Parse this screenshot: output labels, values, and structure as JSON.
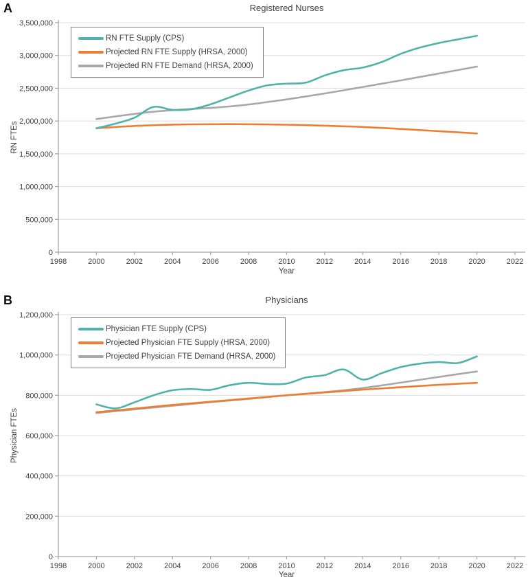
{
  "figure": {
    "background": "#ffffff",
    "text_color": "#404040",
    "axis_color": "#a6a6a6",
    "gridline_color": "#dcdcdc"
  },
  "chart_data": [
    {
      "type": "line",
      "panel_label": "A",
      "title": "Registered Nurses",
      "xlabel": "Year",
      "ylabel": "RN FTEs",
      "xlim": [
        1998,
        2022
      ],
      "ylim": [
        0,
        3500000
      ],
      "x_tick_step": 2,
      "y_tick_step": 500000,
      "grid": "horizontal",
      "legend_position": "top-left",
      "x": [
        2000,
        2001,
        2002,
        2003,
        2004,
        2005,
        2006,
        2007,
        2008,
        2009,
        2010,
        2011,
        2012,
        2013,
        2014,
        2015,
        2016,
        2017,
        2018,
        2019,
        2020
      ],
      "series": [
        {
          "name": "RN FTE Supply (CPS)",
          "color": "#4FB3AC",
          "values": [
            1890000,
            1960000,
            2050000,
            2215000,
            2170000,
            2180000,
            2255000,
            2360000,
            2465000,
            2545000,
            2570000,
            2585000,
            2695000,
            2775000,
            2815000,
            2900000,
            3025000,
            3120000,
            3190000,
            3245000,
            3300000
          ]
        },
        {
          "name": "Projected RN FTE Supply (HRSA, 2000)",
          "color": "#EC7D33",
          "values": [
            1890000,
            1908000,
            1925000,
            1936000,
            1945000,
            1949000,
            1951000,
            1952000,
            1951000,
            1948000,
            1944000,
            1937000,
            1929000,
            1920000,
            1909000,
            1895000,
            1879000,
            1862000,
            1845000,
            1828000,
            1810000
          ]
        },
        {
          "name": "Projected RN FTE Demand (HRSA, 2000)",
          "color": "#A8A8A8",
          "values": [
            2030000,
            2070000,
            2108000,
            2142000,
            2166000,
            2184000,
            2200000,
            2222000,
            2252000,
            2290000,
            2330000,
            2374000,
            2420000,
            2469000,
            2519000,
            2569000,
            2620000,
            2672000,
            2724000,
            2777000,
            2830000
          ]
        }
      ]
    },
    {
      "type": "line",
      "panel_label": "B",
      "title": "Physicians",
      "xlabel": "Year",
      "ylabel": "Physician FTEs",
      "xlim": [
        1998,
        2022
      ],
      "ylim": [
        0,
        1200000
      ],
      "x_tick_step": 2,
      "y_tick_step": 200000,
      "grid": "horizontal",
      "legend_position": "top-left",
      "x": [
        2000,
        2001,
        2002,
        2003,
        2004,
        2005,
        2006,
        2007,
        2008,
        2009,
        2010,
        2011,
        2012,
        2013,
        2014,
        2015,
        2016,
        2017,
        2018,
        2019,
        2020
      ],
      "series": [
        {
          "name": "Physician FTE Supply (CPS)",
          "color": "#4FB3AC",
          "values": [
            755000,
            735000,
            765000,
            800000,
            825000,
            831000,
            827000,
            850000,
            862000,
            856000,
            858000,
            888000,
            900000,
            928000,
            878000,
            910000,
            940000,
            957000,
            965000,
            960000,
            993000
          ]
        },
        {
          "name": "Projected Physician FTE Supply (HRSA, 2000)",
          "color": "#EC7D33",
          "values": [
            716000,
            725000,
            734000,
            743000,
            752000,
            760000,
            768000,
            776000,
            784000,
            792000,
            800000,
            807000,
            814000,
            821000,
            828000,
            834000,
            840000,
            846000,
            852000,
            857000,
            862000
          ]
        },
        {
          "name": "Projected Physician FTE Demand (HRSA, 2000)",
          "color": "#A8A8A8",
          "values": [
            712000,
            721000,
            730000,
            739000,
            748000,
            757000,
            766000,
            774000,
            782000,
            791000,
            800000,
            808000,
            816000,
            825000,
            836000,
            849000,
            863000,
            877000,
            891000,
            905000,
            918000
          ]
        }
      ]
    }
  ]
}
